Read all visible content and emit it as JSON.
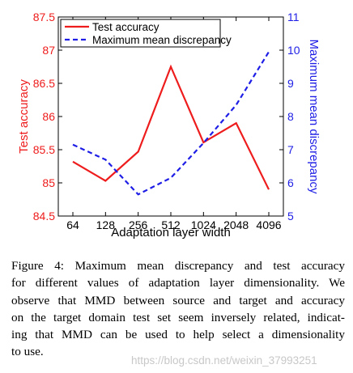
{
  "chart_data": {
    "type": "line",
    "x_categories": [
      "64",
      "128",
      "256",
      "512",
      "1024",
      "2048",
      "4096"
    ],
    "xlabel": "Adaptation layer width",
    "left_axis": {
      "label": "Test accuracy",
      "range": [
        84.5,
        87.5
      ],
      "ticks": [
        "84.5",
        "85",
        "85.5",
        "86",
        "86.5",
        "87",
        "87.5"
      ],
      "color": "#ee1c1c"
    },
    "right_axis": {
      "label": "Maximum mean discrepancy",
      "range": [
        5,
        11
      ],
      "ticks": [
        "5",
        "6",
        "7",
        "8",
        "9",
        "10",
        "11"
      ],
      "color": "#1e1ee6"
    },
    "series": [
      {
        "name": "Test accuracy",
        "axis": "left",
        "style": "solid",
        "color": "#ee1c1c",
        "values": [
          85.32,
          85.03,
          85.47,
          86.75,
          85.61,
          85.9,
          84.9
        ]
      },
      {
        "name": "Maximum mean discrepancy",
        "axis": "right",
        "style": "dashed",
        "color": "#1e1ee6",
        "values": [
          7.15,
          6.7,
          5.65,
          6.15,
          7.2,
          8.35,
          9.95
        ]
      }
    ],
    "legend_position": "top-left",
    "grid": false
  },
  "caption": {
    "lines": [
      "Figure 4: Maximum mean discrepancy and test accuracy",
      "for different values of adaptation layer dimensionality. We",
      "observe that MMD between source and target and accuracy",
      "on the target domain test set seem inversely related, indicat-",
      "ing that MMD can be used to help select a dimensionality",
      "to use."
    ]
  },
  "watermark": "https://blog.csdn.net/weixin_37993251"
}
